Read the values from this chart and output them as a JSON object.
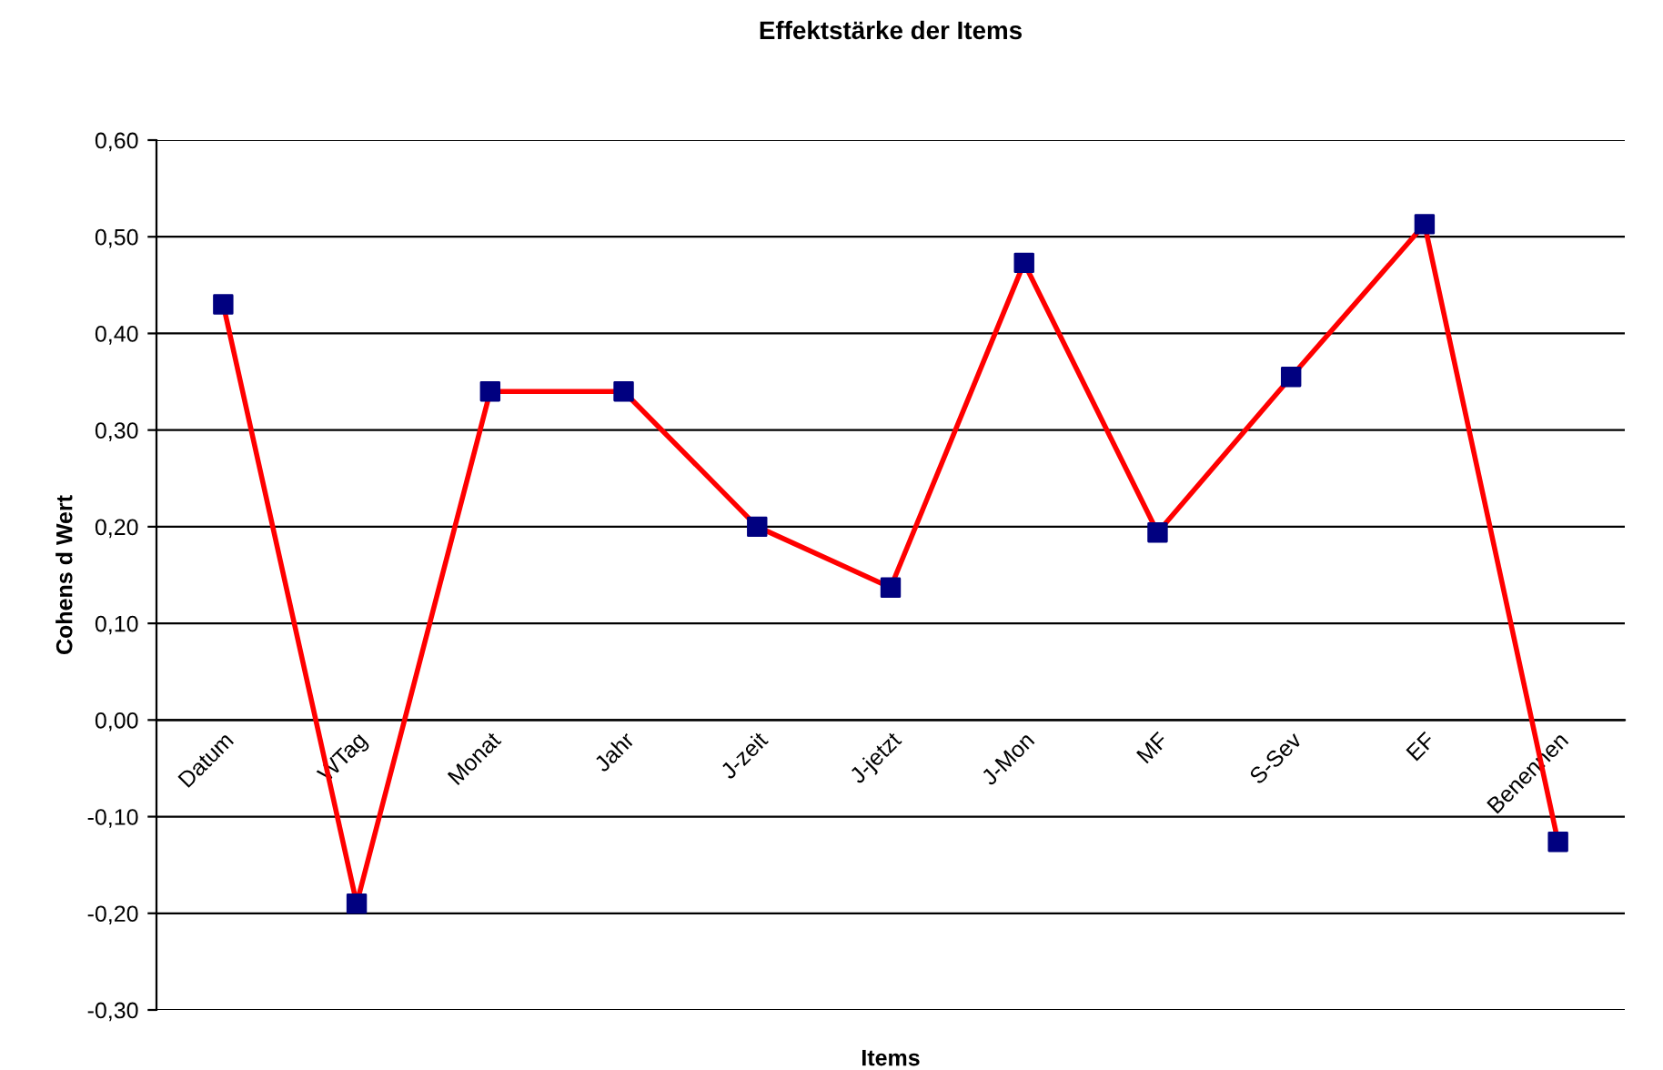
{
  "chart_data": {
    "type": "line",
    "title": "Effektstärke der Items",
    "xlabel": "Items",
    "ylabel": "Cohens d Wert",
    "categories": [
      "Datum",
      "WTag",
      "Monat",
      "Jahr",
      "J-zeit",
      "J-jetzt",
      "J-Mon",
      "MF",
      "S-Sev",
      "EF",
      "Benennen"
    ],
    "series": [
      {
        "color": "#ff0000",
        "colors": [
          "#000080",
          "#000080",
          "#000080",
          "#000080",
          "#000080",
          "#000080",
          "#000080",
          "#000080",
          "#000080",
          "#000080",
          "#000080"
        ],
        "values": [
          0.43,
          -0.19,
          0.34,
          0.34,
          0.2,
          0.137,
          0.473,
          0.194,
          0.355,
          0.513,
          -0.126
        ]
      }
    ],
    "ylim": [
      -0.3,
      0.6
    ],
    "yticks": [
      {
        "value": -0.3,
        "label": "-0,30"
      },
      {
        "value": -0.2,
        "label": "-0,20"
      },
      {
        "value": -0.1,
        "label": "-0,10"
      },
      {
        "value": 0,
        "label": "0,00"
      },
      {
        "value": 0.1,
        "label": "0,10"
      },
      {
        "value": 0.2,
        "label": "0,20"
      },
      {
        "value": 0.3,
        "label": "0,30"
      },
      {
        "value": 0.4,
        "label": "0,40"
      },
      {
        "value": 0.5,
        "label": "0,50"
      },
      {
        "value": 0.6,
        "label": "0,60"
      }
    ],
    "grid": "y",
    "marker": "square",
    "line_style": "solid",
    "legend": false
  }
}
